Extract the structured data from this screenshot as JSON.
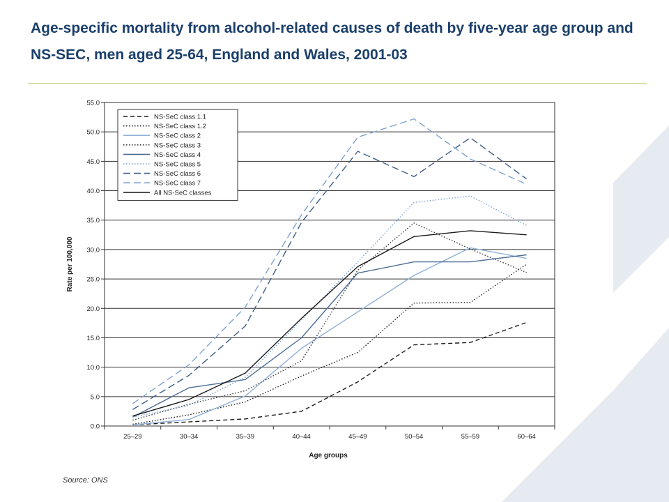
{
  "slide": {
    "title": "Age-specific mortality from alcohol-related causes of death by five-year age group and NS-SEC, men aged 25-64, England and Wales, 2001-03",
    "source": "Source: ONS",
    "colors": {
      "title": "#1b3f6b",
      "rule": "#c8d38a",
      "background_shape": "#e6ebf1"
    }
  },
  "chart_data": {
    "type": "line",
    "title": "",
    "xlabel": "Age groups",
    "ylabel": "Rate per 100,000",
    "ylim": [
      0,
      55
    ],
    "yticks": [
      "0.0",
      "5.0",
      "10.0",
      "15.0",
      "20.0",
      "25.0",
      "30.0",
      "35.0",
      "40.0",
      "45.0",
      "50.0",
      "55.0"
    ],
    "categories": [
      "25–29",
      "30–34",
      "35–39",
      "40–44",
      "45–49",
      "50–54",
      "55–59",
      "60–64"
    ],
    "grid": true,
    "legend_position": "top-left",
    "series": [
      {
        "name": "NS-SeC class 1.1",
        "color": "#1a1a1a",
        "dash": "dashed",
        "values": [
          0.2,
          0.7,
          1.2,
          2.5,
          7.5,
          13.8,
          14.2,
          17.6
        ]
      },
      {
        "name": "NS-SeC class 1.2",
        "color": "#1a1a1a",
        "dash": "dotted",
        "values": [
          0.3,
          1.9,
          4.1,
          8.5,
          12.5,
          20.9,
          21.0,
          27.5
        ]
      },
      {
        "name": "NS-SeC class 2",
        "color": "#8fb0d8",
        "dash": "solid",
        "values": [
          0.2,
          1.1,
          5.1,
          13.2,
          19.4,
          25.6,
          30.3,
          28.5
        ]
      },
      {
        "name": "NS-SeC class 3",
        "color": "#333333",
        "dash": "dotted",
        "values": [
          1.0,
          3.7,
          6.0,
          11.1,
          26.5,
          34.5,
          30.1,
          26.1
        ]
      },
      {
        "name": "NS-SeC class 4",
        "color": "#4f6f96",
        "dash": "solid",
        "values": [
          1.5,
          6.5,
          7.9,
          15.0,
          26.0,
          27.9,
          27.9,
          29.1
        ]
      },
      {
        "name": "NS-SeC class 5",
        "color": "#7aa0d2",
        "dash": "dotted",
        "values": [
          1.5,
          3.5,
          8.3,
          18.0,
          27.9,
          38.0,
          39.1,
          34.1
        ]
      },
      {
        "name": "NS-SeC class 6",
        "color": "#3e5d87",
        "dash": "longdash",
        "values": [
          2.8,
          8.6,
          17.0,
          34.6,
          46.7,
          42.4,
          49.0,
          42.0
        ]
      },
      {
        "name": "NS-SeC class 7",
        "color": "#7fa1cf",
        "dash": "longdash",
        "values": [
          3.8,
          10.4,
          20.2,
          35.9,
          49.1,
          52.2,
          45.4,
          41.1
        ]
      },
      {
        "name": "All NS-SeC classes",
        "color": "#1a1a1a",
        "dash": "solid",
        "values": [
          1.7,
          4.5,
          9.0,
          18.3,
          27.1,
          32.2,
          33.2,
          32.5
        ]
      }
    ]
  }
}
